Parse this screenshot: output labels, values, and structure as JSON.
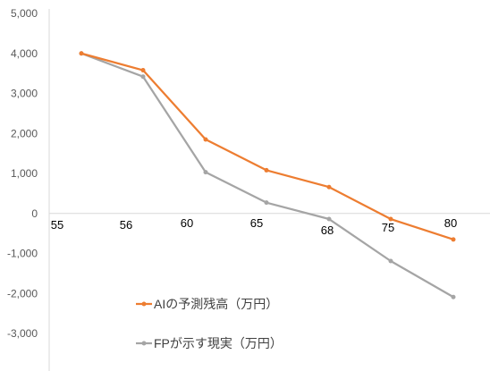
{
  "chart_data": {
    "type": "line",
    "title": "",
    "xlabel": "",
    "ylabel": "",
    "categories": [
      "55",
      "56",
      "60",
      "65",
      "68",
      "75",
      "80"
    ],
    "ylim": [
      -3000,
      5000
    ],
    "yticks": [
      5000,
      4000,
      3000,
      2000,
      1000,
      0,
      -1000,
      -2000,
      -3000
    ],
    "ytick_labels": [
      "5,000",
      "4,000",
      "3,000",
      "2,000",
      "1,000",
      "0",
      "-1,000",
      "-2,000",
      "-3,000"
    ],
    "grid": false,
    "legend_position": "bottom-left",
    "series": [
      {
        "name": "AIの予測残高（万円）",
        "color": "#ED7D31",
        "values": [
          4000,
          3580,
          1850,
          1080,
          660,
          -140,
          -650
        ]
      },
      {
        "name": "FPが示す現実（万円）",
        "color": "#A5A5A5",
        "values": [
          4000,
          3420,
          1030,
          270,
          -140,
          -1190,
          -2090
        ]
      }
    ]
  }
}
